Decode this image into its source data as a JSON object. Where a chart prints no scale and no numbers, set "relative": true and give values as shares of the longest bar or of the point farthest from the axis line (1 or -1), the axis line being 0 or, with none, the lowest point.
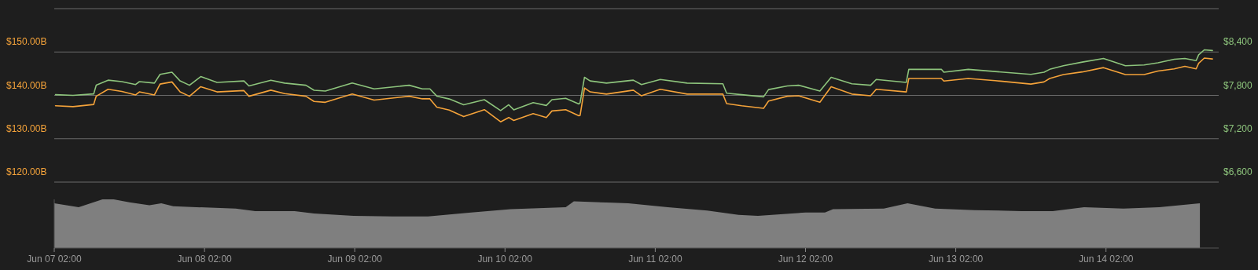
{
  "chart_data": [
    {
      "type": "line",
      "x": [
        "--06-07T02:12",
        "--06-07T05:00",
        "--06-07T08:18",
        "--06-07T08:42",
        "--06-07T10:36",
        "--06-07T12:48",
        "--06-07T15:00",
        "--06-07T15:36",
        "--06-07T18:00",
        "--06-07T18:54",
        "--06-07T20:48",
        "--06-07T22:06",
        "--06-07T23:36",
        "--06-08T01:24",
        "--06-08T04:00",
        "--06-08T08:18",
        "--06-08T09:06",
        "--06-08T12:36",
        "--06-08T14:48",
        "--06-08T18:12",
        "--06-08T19:30",
        "--06-08T21:18",
        "--06-09T01:36",
        "--06-09T05:06",
        "--06-09T10:42",
        "--06-09T12:48",
        "--06-09T14:00",
        "--06-09T15:06",
        "--06-09T17:06",
        "--06-09T19:24",
        "--06-09T22:42",
        "--06-10T01:18",
        "--06-10T02:36",
        "--06-10T03:24",
        "--06-10T06:30",
        "--06-10T08:36",
        "--06-10T09:30",
        "--06-10T11:42",
        "--06-10T13:48",
        "--06-10T14:00",
        "--06-10T14:42",
        "--06-10T15:36",
        "--06-10T18:12",
        "--06-10T22:30",
        "--06-10T23:48",
        "--06-11T02:48",
        "--06-11T07:06",
        "--06-11T12:48",
        "--06-11T13:24",
        "--06-11T15:48",
        "--06-11T19:18",
        "--06-11T20:06",
        "--06-11T23:06",
        "--06-12T00:54",
        "--06-12T04:18",
        "--06-12T06:06",
        "--06-12T09:24",
        "--06-12T12:24",
        "--06-12T13:18",
        "--06-12T18:06",
        "--06-12T18:30",
        "--06-12T23:42",
        "--06-13T00:06",
        "--06-13T04:00",
        "--06-13T08:18",
        "--06-13T14:00",
        "--06-13T16:06",
        "--06-13T17:00",
        "--06-13T19:12",
        "--06-13T22:12",
        "--06-14T01:36",
        "--06-14T05:06",
        "--06-14T08:06",
        "--06-14T10:18",
        "--06-14T12:54",
        "--06-14T14:36",
        "--06-14T16:24",
        "--06-14T16:48",
        "--06-14T17:42",
        "--06-14T19:00"
      ],
      "series": [
        {
          "color": "#f5a33a",
          "values": [
            137.6,
            137.4,
            137.9,
            139.8,
            141.4,
            140.9,
            140.1,
            140.8,
            140.1,
            142.6,
            143.1,
            140.8,
            139.8,
            142.0,
            140.8,
            141.1,
            139.8,
            141.2,
            140.4,
            139.8,
            138.6,
            138.4,
            140.3,
            138.9,
            139.8,
            139.2,
            139.2,
            137.3,
            136.6,
            135.1,
            136.7,
            133.9,
            134.9,
            134.2,
            135.8,
            134.9,
            136.4,
            136.7,
            135.3,
            135.4,
            141.7,
            140.8,
            140.3,
            141.2,
            139.9,
            141.4,
            140.3,
            140.3,
            138.1,
            137.6,
            137.0,
            138.7,
            139.8,
            139.9,
            138.4,
            142.0,
            140.3,
            139.9,
            141.4,
            140.8,
            143.9,
            143.9,
            143.3,
            143.9,
            143.4,
            142.6,
            143.1,
            143.9,
            144.8,
            145.4,
            146.4,
            144.8,
            144.8,
            145.6,
            146.1,
            146.7,
            146.1,
            147.4,
            148.6,
            148.4
          ]
        },
        {
          "color": "#8dc47c",
          "axis": "y2",
          "values": [
            7810,
            7800,
            7820,
            7940,
            8010,
            7990,
            7950,
            7990,
            7970,
            8090,
            8120,
            8000,
            7940,
            8060,
            7980,
            8000,
            7930,
            8010,
            7970,
            7940,
            7870,
            7860,
            7970,
            7890,
            7940,
            7890,
            7890,
            7790,
            7750,
            7670,
            7740,
            7590,
            7670,
            7600,
            7700,
            7660,
            7740,
            7760,
            7680,
            7700,
            8050,
            8000,
            7970,
            8010,
            7950,
            8020,
            7970,
            7960,
            7830,
            7810,
            7780,
            7880,
            7930,
            7940,
            7860,
            8050,
            7960,
            7940,
            8020,
            7980,
            8160,
            8160,
            8120,
            8160,
            8130,
            8090,
            8120,
            8160,
            8210,
            8260,
            8310,
            8210,
            8220,
            8250,
            8300,
            8310,
            8280,
            8360,
            8430,
            8420
          ]
        }
      ],
      "xlim": [
        "--06-07T02:00",
        "--06-14T20:00"
      ],
      "ylim": [
        120,
        160
      ],
      "yticks": [
        {
          "value": 120,
          "label": "$120.00B"
        },
        {
          "value": 130,
          "label": "$130.00B"
        },
        {
          "value": 140,
          "label": "$140.00B"
        },
        {
          "value": 150,
          "label": "$150.00B"
        },
        {
          "value": 160,
          "label": null
        }
      ],
      "y2lim": [
        6600,
        9000
      ],
      "y2ticks": [
        {
          "value": 6600,
          "label": "$6,600"
        },
        {
          "value": 7200,
          "label": "$7,200"
        },
        {
          "value": 7800,
          "label": "$7,800"
        },
        {
          "value": 8400,
          "label": "$8,400"
        }
      ],
      "grid": "y",
      "tick_labels": "y"
    },
    {
      "type": "area",
      "relative": true,
      "x": [
        "--06-07T02:00",
        "--06-07T05:54",
        "--06-07T09:42",
        "--06-07T11:30",
        "--06-07T14:00",
        "--06-07T17:12",
        "--06-07T19:06",
        "--06-07T21:00",
        "--06-08T00:42",
        "--06-08T07:00",
        "--06-08T10:06",
        "--06-08T16:24",
        "--06-08T19:30",
        "--06-09T01:48",
        "--06-09T08:06",
        "--06-09T13:42",
        "--06-09T20:36",
        "--06-10T02:54",
        "--06-10T11:42",
        "--06-10T13:00",
        "--06-10T19:12",
        "--06-10T21:42",
        "--06-11T04:00",
        "--06-11T10:18",
        "--06-11T15:18",
        "--06-11T18:24",
        "--06-12T02:00",
        "--06-12T05:06",
        "--06-12T06:24",
        "--06-12T14:30",
        "--06-12T18:18",
        "--06-12T22:42",
        "--06-13T05:00",
        "--06-13T12:30",
        "--06-13T17:30",
        "--06-13T22:30",
        "--06-14T04:48",
        "--06-14T10:30",
        "--06-14T17:00"
      ],
      "series": [
        {
          "color": "#7f7f7f",
          "values": [
            0.92,
            0.84,
            1,
            1,
            0.94,
            0.88,
            0.92,
            0.86,
            0.84,
            0.81,
            0.76,
            0.76,
            0.71,
            0.66,
            0.65,
            0.65,
            0.73,
            0.8,
            0.84,
            0.96,
            0.93,
            0.92,
            0.84,
            0.77,
            0.68,
            0.66,
            0.73,
            0.73,
            0.8,
            0.81,
            0.92,
            0.81,
            0.78,
            0.76,
            0.76,
            0.84,
            0.81,
            0.84,
            0.92
          ]
        }
      ],
      "xlim": [
        "--06-07T02:00",
        "--06-14T20:00"
      ],
      "xticks": [
        {
          "value": "--06-07T02:00",
          "label": "Jun 07 02:00"
        },
        {
          "value": "--06-08T02:00",
          "label": "Jun 08 02:00"
        },
        {
          "value": "--06-09T02:00",
          "label": "Jun 09 02:00"
        },
        {
          "value": "--06-10T02:00",
          "label": "Jun 10 02:00"
        },
        {
          "value": "--06-11T02:00",
          "label": "Jun 11 02:00"
        },
        {
          "value": "--06-12T02:00",
          "label": "Jun 12 02:00"
        },
        {
          "value": "--06-13T02:00",
          "label": "Jun 13 02:00"
        },
        {
          "value": "--06-14T02:00",
          "label": "Jun 14 02:00"
        }
      ],
      "tick_labels": "x"
    }
  ]
}
